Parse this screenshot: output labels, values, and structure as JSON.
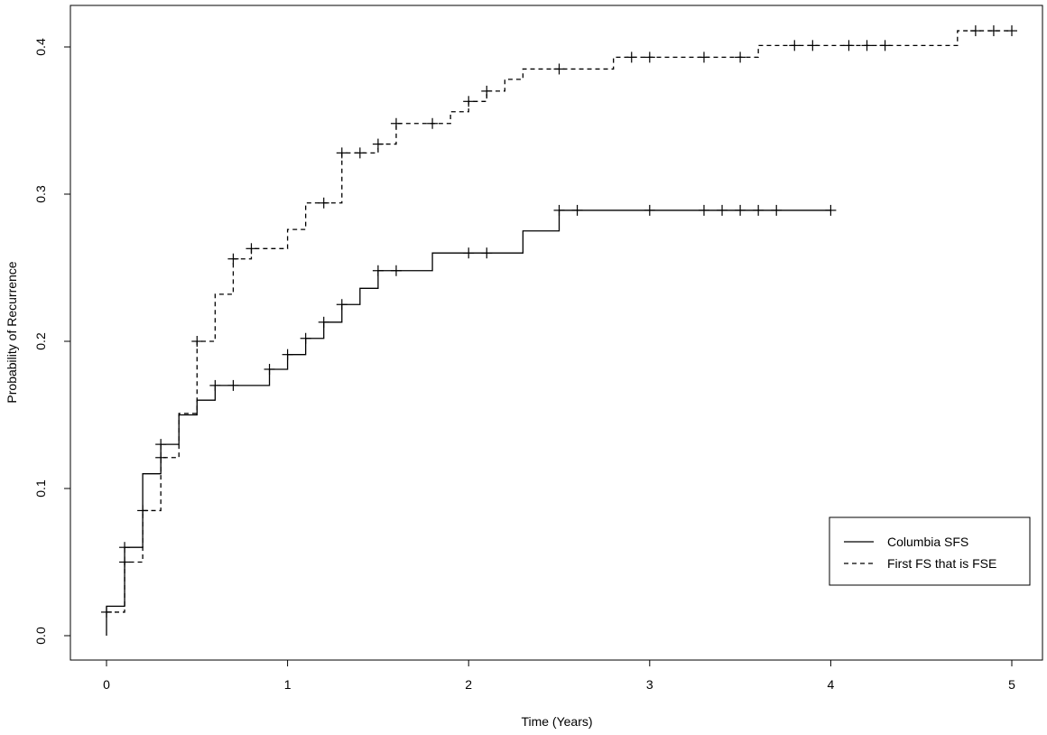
{
  "chart_data": {
    "type": "line",
    "step": true,
    "title": "",
    "xlabel": "Time (Years)",
    "ylabel": "Probability of Recurrence",
    "xlim": [
      0,
      5
    ],
    "ylim": [
      0,
      0.4
    ],
    "xticks": [
      "0",
      "1",
      "2",
      "3",
      "4",
      "5"
    ],
    "yticks": [
      "0.0",
      "0.1",
      "0.2",
      "0.3",
      "0.4"
    ],
    "grid": false,
    "legend_position": "bottom-right",
    "series": [
      {
        "name": "Columbia SFS",
        "line_style": "solid",
        "color": "#000000",
        "steps": [
          [
            0,
            0
          ],
          [
            0,
            0.02
          ],
          [
            0.1,
            0.06
          ],
          [
            0.2,
            0.11
          ],
          [
            0.3,
            0.13
          ],
          [
            0.4,
            0.15
          ],
          [
            0.5,
            0.16
          ],
          [
            0.6,
            0.17
          ],
          [
            0.9,
            0.181
          ],
          [
            1.0,
            0.191
          ],
          [
            1.1,
            0.202
          ],
          [
            1.2,
            0.213
          ],
          [
            1.3,
            0.225
          ],
          [
            1.4,
            0.236
          ],
          [
            1.5,
            0.248
          ],
          [
            1.8,
            0.26
          ],
          [
            2.3,
            0.275
          ],
          [
            2.5,
            0.289
          ]
        ],
        "end_time": 4.0,
        "censored": [
          0.1,
          0.3,
          0.6,
          0.7,
          0.9,
          1.0,
          1.1,
          1.2,
          1.3,
          1.5,
          1.6,
          2.0,
          2.1,
          2.5,
          2.6,
          3.0,
          3.3,
          3.4,
          3.5,
          3.6,
          3.7,
          4.0
        ]
      },
      {
        "name": "First FS that is FSE",
        "line_style": "dashed",
        "color": "#000000",
        "steps": [
          [
            0,
            0.016
          ],
          [
            0.1,
            0.05
          ],
          [
            0.2,
            0.085
          ],
          [
            0.3,
            0.121
          ],
          [
            0.4,
            0.151
          ],
          [
            0.5,
            0.2
          ],
          [
            0.6,
            0.232
          ],
          [
            0.7,
            0.256
          ],
          [
            0.8,
            0.263
          ],
          [
            1.0,
            0.276
          ],
          [
            1.1,
            0.294
          ],
          [
            1.3,
            0.328
          ],
          [
            1.5,
            0.334
          ],
          [
            1.6,
            0.348
          ],
          [
            1.9,
            0.356
          ],
          [
            2.0,
            0.363
          ],
          [
            2.1,
            0.37
          ],
          [
            2.2,
            0.378
          ],
          [
            2.3,
            0.385
          ],
          [
            2.8,
            0.393
          ],
          [
            3.6,
            0.401
          ],
          [
            4.7,
            0.411
          ]
        ],
        "end_time": 5.0,
        "censored": [
          0,
          0.1,
          0.2,
          0.3,
          0.5,
          0.7,
          0.8,
          1.2,
          1.3,
          1.4,
          1.5,
          1.6,
          1.8,
          2.0,
          2.1,
          2.5,
          2.9,
          3.0,
          3.3,
          3.5,
          3.8,
          3.9,
          4.1,
          4.2,
          4.3,
          4.8,
          4.9,
          5.0
        ]
      }
    ]
  }
}
